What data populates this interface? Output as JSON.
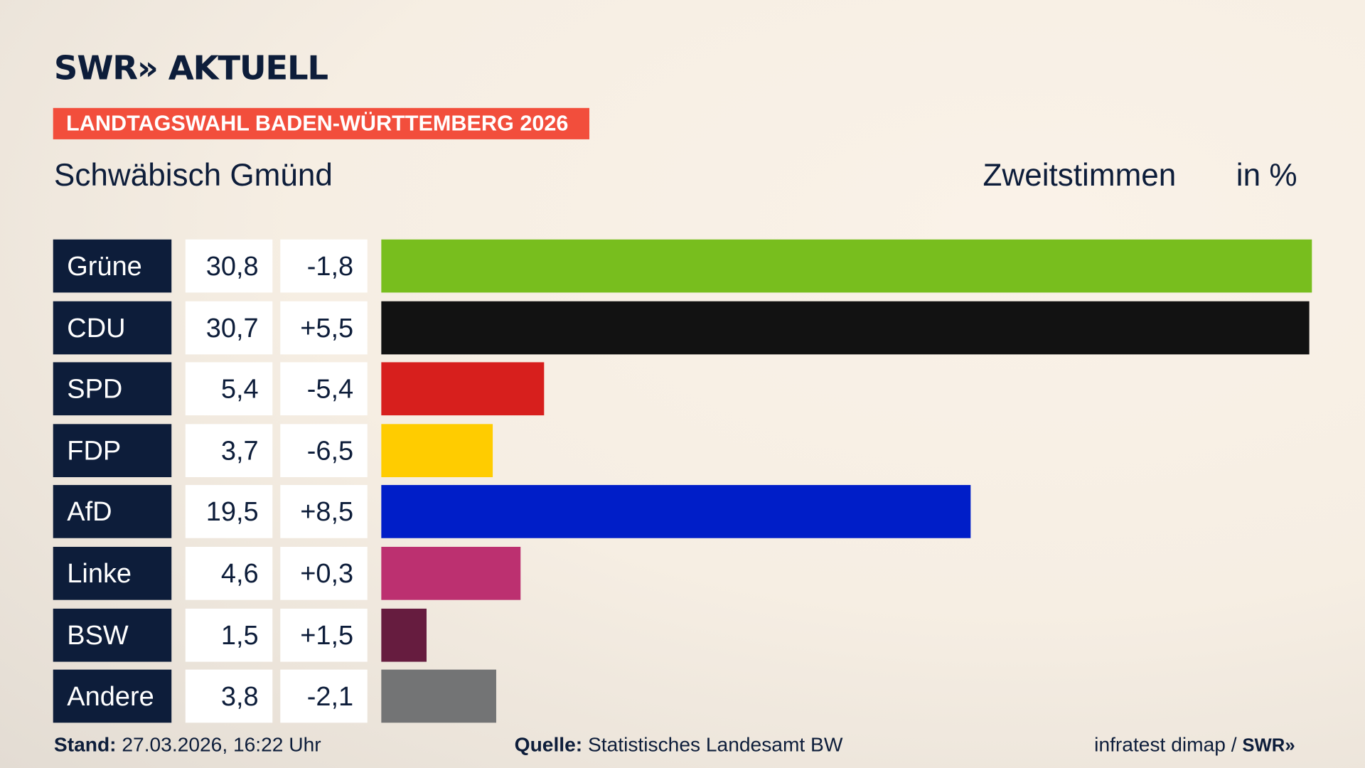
{
  "header": {
    "logo": "SWR» AKTUELL",
    "banner": "LANDTAGSWAHL BADEN-WÜRTTEMBERG 2026",
    "region": "Schwäbisch Gmünd",
    "vote_type": "Zweitstimmen",
    "unit": "in %"
  },
  "chart_data": {
    "type": "bar",
    "orientation": "horizontal",
    "categories": [
      "Grüne",
      "CDU",
      "SPD",
      "FDP",
      "AfD",
      "Linke",
      "BSW",
      "Andere"
    ],
    "values": [
      30.8,
      30.7,
      5.4,
      3.7,
      19.5,
      4.6,
      1.5,
      3.8
    ],
    "value_labels": [
      "30,8",
      "30,7",
      "5,4",
      "3,7",
      "19,5",
      "4,6",
      "1,5",
      "3,8"
    ],
    "change_labels": [
      "-1,8",
      "+5,5",
      "-5,4",
      "-6,5",
      "+8,5",
      "+0,3",
      "+1,5",
      "-2,1"
    ],
    "colors": [
      "#78be1e",
      "#121212",
      "#d71f1d",
      "#ffcc00",
      "#001ec8",
      "#bc3070",
      "#661c3f",
      "#737475"
    ],
    "xlim": [
      0,
      30.8
    ]
  },
  "footer": {
    "stand_label": "Stand:",
    "stand_value": "27.03.2026, 16:22 Uhr",
    "source_label": "Quelle:",
    "source_value": "Statistisches Landesamt BW",
    "credit": "infratest dimap / ",
    "credit_logo": "SWR»"
  }
}
